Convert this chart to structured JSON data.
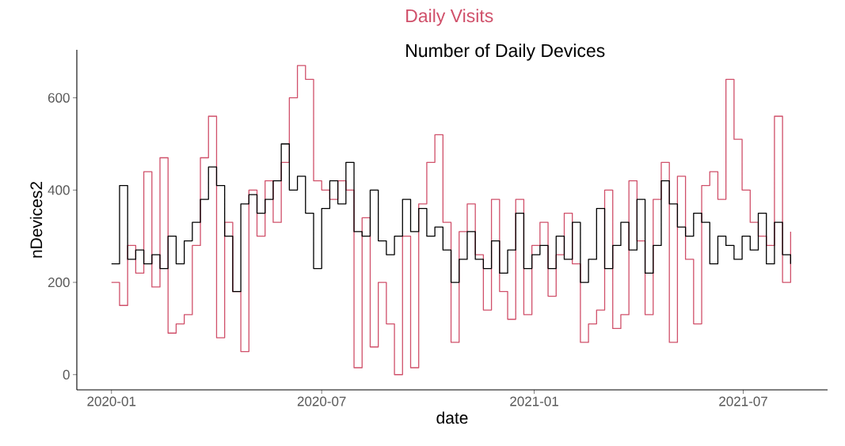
{
  "chart_data": {
    "type": "step",
    "xlabel": "date",
    "ylabel": "nDevices2",
    "legend": "top",
    "x": [
      "2020-01-01",
      "2020-01-08",
      "2020-01-15",
      "2020-01-22",
      "2020-01-29",
      "2020-02-05",
      "2020-02-12",
      "2020-02-19",
      "2020-02-26",
      "2020-03-04",
      "2020-03-11",
      "2020-03-18",
      "2020-03-25",
      "2020-04-01",
      "2020-04-08",
      "2020-04-15",
      "2020-04-22",
      "2020-04-29",
      "2020-05-06",
      "2020-05-13",
      "2020-05-20",
      "2020-05-27",
      "2020-06-03",
      "2020-06-10",
      "2020-06-17",
      "2020-06-24",
      "2020-07-01",
      "2020-07-08",
      "2020-07-15",
      "2020-07-22",
      "2020-07-29",
      "2020-08-05",
      "2020-08-12",
      "2020-08-19",
      "2020-08-26",
      "2020-09-02",
      "2020-09-09",
      "2020-09-16",
      "2020-09-23",
      "2020-09-30",
      "2020-10-07",
      "2020-10-14",
      "2020-10-21",
      "2020-10-28",
      "2020-11-04",
      "2020-11-11",
      "2020-11-18",
      "2020-11-25",
      "2020-12-02",
      "2020-12-09",
      "2020-12-16",
      "2020-12-23",
      "2020-12-30",
      "2021-01-06",
      "2021-01-13",
      "2021-01-20",
      "2021-01-27",
      "2021-02-03",
      "2021-02-10",
      "2021-02-17",
      "2021-02-24",
      "2021-03-03",
      "2021-03-10",
      "2021-03-17",
      "2021-03-24",
      "2021-03-31",
      "2021-04-07",
      "2021-04-14",
      "2021-04-21",
      "2021-04-28",
      "2021-05-05",
      "2021-05-12",
      "2021-05-19",
      "2021-05-26",
      "2021-06-02",
      "2021-06-09",
      "2021-06-16",
      "2021-06-23",
      "2021-06-30",
      "2021-07-07",
      "2021-07-14",
      "2021-07-21",
      "2021-07-28",
      "2021-08-04",
      "2021-08-11"
    ],
    "series": [
      {
        "name": "Daily Visits",
        "color": "#d0506a",
        "values": [
          200,
          150,
          280,
          220,
          440,
          190,
          470,
          90,
          110,
          130,
          280,
          470,
          560,
          80,
          330,
          180,
          50,
          400,
          300,
          420,
          330,
          460,
          600,
          670,
          640,
          420,
          400,
          380,
          420,
          400,
          15,
          340,
          60,
          200,
          110,
          0,
          300,
          15,
          370,
          460,
          520,
          330,
          70,
          310,
          370,
          260,
          140,
          380,
          180,
          120,
          380,
          130,
          280,
          330,
          170,
          260,
          350,
          240,
          70,
          110,
          140,
          400,
          100,
          130,
          420,
          290,
          130,
          380,
          460,
          70,
          430,
          250,
          110,
          410,
          440,
          380,
          640,
          510,
          400,
          330,
          300,
          280,
          560,
          200,
          310
        ]
      },
      {
        "name": "Number of Daily Devices",
        "color": "#000000",
        "values": [
          240,
          410,
          250,
          270,
          240,
          260,
          230,
          300,
          240,
          290,
          330,
          380,
          450,
          410,
          300,
          180,
          370,
          390,
          350,
          380,
          420,
          500,
          400,
          430,
          350,
          230,
          360,
          420,
          370,
          460,
          310,
          300,
          400,
          290,
          260,
          300,
          380,
          310,
          360,
          300,
          320,
          270,
          200,
          250,
          310,
          250,
          230,
          290,
          220,
          270,
          350,
          230,
          260,
          280,
          230,
          300,
          250,
          330,
          200,
          250,
          360,
          230,
          280,
          330,
          270,
          380,
          220,
          280,
          420,
          370,
          320,
          300,
          350,
          330,
          240,
          300,
          280,
          250,
          300,
          270,
          350,
          240,
          330,
          260,
          240
        ]
      }
    ],
    "xlim": [
      "2019-12-02",
      "2021-09-12"
    ],
    "xticks": [
      {
        "value": "2020-01-01",
        "label": "2020-01"
      },
      {
        "value": "2020-07-01",
        "label": "2020-07"
      },
      {
        "value": "2021-01-01",
        "label": "2021-01"
      },
      {
        "value": "2021-07-01",
        "label": "2021-07"
      }
    ],
    "ylim": [
      -33,
      704
    ],
    "yticks": [
      0,
      200,
      400,
      600
    ]
  }
}
